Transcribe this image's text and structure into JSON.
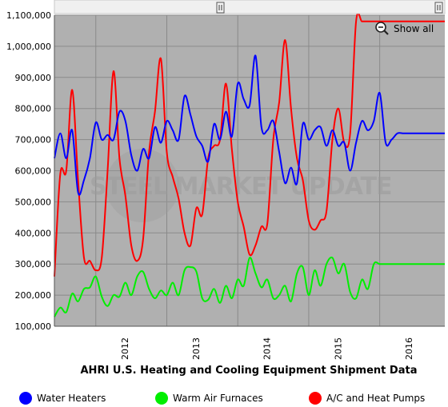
{
  "colors": {
    "plot_background": "#b0b0b0",
    "water_heaters": "#0000ff",
    "warm_air_furnaces": "#00ee00",
    "ac_heat_pumps": "#ff0000"
  },
  "controls": {
    "show_all_label": "Show all",
    "zoom_icon": "magnifier-minus-icon",
    "navigator_handle_icon": "grip-handle-icon"
  },
  "watermark": {
    "text": "STEEL MARKET UPDATE"
  },
  "chart_data": {
    "type": "line",
    "title": "AHRI U.S. Heating and Cooling Equipment Shipment Data",
    "xlabel": "",
    "ylabel": "",
    "ylim": [
      100000,
      1100000
    ],
    "y_ticks": [
      100000,
      200000,
      300000,
      400000,
      500000,
      600000,
      700000,
      800000,
      900000,
      1000000,
      1100000
    ],
    "y_tick_labels": [
      "100,000",
      "200,000",
      "300,000",
      "400,000",
      "500,000",
      "600,000",
      "700,000",
      "800,000",
      "900,000",
      "1,000,000",
      "1,100,000"
    ],
    "x_tick_labels": [
      "2012",
      "2013",
      "2014",
      "2015",
      "2016"
    ],
    "xlim": [
      "2011-06",
      "2016-12"
    ],
    "grid": true,
    "legend_position": "bottom",
    "x": [
      "2011-06",
      "2011-07",
      "2011-08",
      "2011-09",
      "2011-10",
      "2011-11",
      "2011-12",
      "2012-01",
      "2012-02",
      "2012-03",
      "2012-04",
      "2012-05",
      "2012-06",
      "2012-07",
      "2012-08",
      "2012-09",
      "2012-10",
      "2012-11",
      "2012-12",
      "2013-01",
      "2013-02",
      "2013-03",
      "2013-04",
      "2013-05",
      "2013-06",
      "2013-07",
      "2013-08",
      "2013-09",
      "2013-10",
      "2013-11",
      "2013-12",
      "2014-01",
      "2014-02",
      "2014-03",
      "2014-04",
      "2014-05",
      "2014-06",
      "2014-07",
      "2014-08",
      "2014-09",
      "2014-10",
      "2014-11",
      "2014-12",
      "2015-01",
      "2015-02",
      "2015-03",
      "2015-04",
      "2015-05",
      "2015-06",
      "2015-07",
      "2015-08",
      "2015-09",
      "2015-10",
      "2015-11",
      "2015-12",
      "2016-01",
      "2016-02",
      "2016-03",
      "2016-04",
      "2016-05",
      "2016-06",
      "2016-07",
      "2016-08",
      "2016-09",
      "2016-10",
      "2016-11",
      "2016-12"
    ],
    "series": [
      {
        "name": "Water Heaters",
        "color_key": "water_heaters",
        "values": [
          640000,
          720000,
          640000,
          730000,
          530000,
          570000,
          640000,
          755000,
          700000,
          715000,
          700000,
          790000,
          760000,
          650000,
          600000,
          670000,
          640000,
          740000,
          690000,
          760000,
          730000,
          700000,
          840000,
          780000,
          710000,
          680000,
          630000,
          750000,
          700000,
          790000,
          710000,
          880000,
          830000,
          810000,
          970000,
          740000,
          730000,
          760000,
          660000,
          560000,
          610000,
          560000,
          750000,
          700000,
          730000,
          740000,
          680000,
          730000,
          680000,
          690000,
          600000,
          690000,
          760000,
          730000,
          760000,
          850000,
          690000,
          700000,
          720000,
          720000,
          720000,
          720000,
          720000,
          720000,
          720000,
          720000,
          720000
        ]
      },
      {
        "name": "Warm Air Furnaces",
        "color_key": "warm_air_furnaces",
        "values": [
          130000,
          160000,
          145000,
          205000,
          180000,
          220000,
          225000,
          260000,
          195000,
          165000,
          200000,
          195000,
          240000,
          200000,
          260000,
          275000,
          220000,
          190000,
          215000,
          200000,
          240000,
          200000,
          280000,
          290000,
          275000,
          190000,
          185000,
          220000,
          175000,
          230000,
          190000,
          250000,
          230000,
          320000,
          270000,
          225000,
          250000,
          190000,
          200000,
          230000,
          180000,
          270000,
          290000,
          200000,
          280000,
          230000,
          300000,
          320000,
          270000,
          300000,
          210000,
          190000,
          250000,
          220000,
          300000,
          300000,
          300000,
          300000,
          300000,
          300000,
          300000,
          300000,
          300000,
          300000,
          300000,
          300000,
          300000
        ]
      },
      {
        "name": "A/C and Heat Pumps",
        "color_key": "ac_heat_pumps",
        "values": [
          260000,
          590000,
          600000,
          860000,
          570000,
          320000,
          310000,
          280000,
          320000,
          600000,
          920000,
          640000,
          520000,
          360000,
          310000,
          380000,
          660000,
          790000,
          960000,
          660000,
          580000,
          510000,
          400000,
          360000,
          480000,
          460000,
          640000,
          680000,
          700000,
          880000,
          670000,
          500000,
          420000,
          330000,
          360000,
          420000,
          430000,
          700000,
          820000,
          1020000,
          800000,
          640000,
          570000,
          440000,
          410000,
          440000,
          470000,
          700000,
          800000,
          690000,
          720000,
          1080000,
          1080000,
          1080000,
          1080000,
          1080000,
          1080000,
          1080000,
          1080000,
          1080000,
          1080000,
          1080000,
          1080000,
          1080000,
          1080000,
          1080000,
          1080000
        ]
      }
    ]
  }
}
